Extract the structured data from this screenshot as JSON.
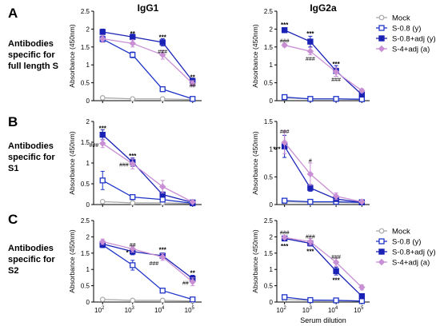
{
  "panels": [
    {
      "letter": "A",
      "label_lines": [
        "Antibodies",
        "specific for",
        "full length S"
      ]
    },
    {
      "letter": "B",
      "label_lines": [
        "Antibodies",
        "specific for",
        "S1"
      ]
    },
    {
      "letter": "C",
      "label_lines": [
        "Antibodies",
        "specific for",
        "S2"
      ]
    }
  ],
  "column_titles": [
    "IgG1",
    "IgG2a"
  ],
  "x_tick_labels": [
    "10",
    "10",
    "10",
    "10"
  ],
  "x_tick_exponents": [
    "2",
    "3",
    "4",
    "5"
  ],
  "x_axis_label": "Serum dilution",
  "y_axis_label": "Absorbance (450nm)",
  "series_styles": [
    {
      "name": "Mock",
      "color": "#a9a9a9",
      "marker": "circle-open"
    },
    {
      "name": "S-0.8 (y)",
      "color": "#1f35c9",
      "marker": "square-open"
    },
    {
      "name": "S-0.8+adj (y)",
      "color": "#1a22b5",
      "marker": "square-filled"
    },
    {
      "name": "S-4+adj (a)",
      "color": "#c98fd4",
      "marker": "diamond-filled"
    }
  ],
  "chart_data": [
    {
      "type": "line",
      "panel": "A",
      "title": "IgG1",
      "xlabel": "",
      "ylabel": "Absorbance (450nm)",
      "x": [
        100,
        1000,
        10000,
        100000
      ],
      "xscale": "log",
      "ylim": [
        0,
        2.5
      ],
      "yticks": [
        0,
        0.5,
        1.0,
        1.5,
        2.0,
        2.5
      ],
      "series": [
        {
          "name": "Mock",
          "values": [
            0.08,
            0.05,
            0.05,
            0.03
          ],
          "errors": [
            0.02,
            0.01,
            0.01,
            0.01
          ]
        },
        {
          "name": "S-0.8 (y)",
          "values": [
            1.72,
            1.28,
            0.32,
            0.05
          ],
          "errors": [
            0.08,
            0.08,
            0.05,
            0.02
          ]
        },
        {
          "name": "S-0.8+adj (y)",
          "values": [
            1.92,
            1.78,
            1.63,
            0.55
          ],
          "errors": [
            0.08,
            0.08,
            0.1,
            0.08
          ]
        },
        {
          "name": "S-4+adj (a)",
          "values": [
            1.73,
            1.6,
            1.28,
            0.48
          ],
          "errors": [
            0.1,
            0.1,
            0.12,
            0.08
          ]
        }
      ],
      "annotations": [
        {
          "text": "**",
          "x": 1000,
          "y": 1.88,
          "kind": "star"
        },
        {
          "text": "***",
          "x": 10000,
          "y": 1.77,
          "kind": "star"
        },
        {
          "text": "**",
          "x": 100000,
          "y": 0.66,
          "kind": "star"
        },
        {
          "text": "###",
          "x": 10000,
          "y": 1.38,
          "kind": "hash"
        },
        {
          "text": "##",
          "x": 100000,
          "y": 0.43,
          "kind": "hash"
        }
      ]
    },
    {
      "type": "line",
      "panel": "A",
      "title": "IgG2a",
      "xlabel": "",
      "ylabel": "Absorbance (450nm)",
      "x": [
        100,
        1000,
        10000,
        100000
      ],
      "xscale": "log",
      "ylim": [
        0,
        2.5
      ],
      "yticks": [
        0,
        0.5,
        1.0,
        1.5,
        2.0,
        2.5
      ],
      "series": [
        {
          "name": "Mock",
          "values": [
            0.08,
            0.05,
            0.05,
            0.03
          ],
          "errors": [
            0.02,
            0.01,
            0.01,
            0.01
          ]
        },
        {
          "name": "S-0.8 (y)",
          "values": [
            0.1,
            0.05,
            0.05,
            0.04
          ],
          "errors": [
            0.02,
            0.01,
            0.01,
            0.01
          ]
        },
        {
          "name": "S-0.8+adj (y)",
          "values": [
            1.97,
            1.65,
            0.83,
            0.17
          ],
          "errors": [
            0.06,
            0.15,
            0.15,
            0.05
          ]
        },
        {
          "name": "S-4+adj (a)",
          "values": [
            1.55,
            1.38,
            0.8,
            0.28
          ],
          "errors": [
            0.05,
            0.1,
            0.12,
            0.05
          ]
        }
      ],
      "annotations": [
        {
          "text": "***",
          "x": 100,
          "y": 2.12,
          "kind": "star"
        },
        {
          "text": "***",
          "x": 1000,
          "y": 1.87,
          "kind": "star"
        },
        {
          "text": "***",
          "x": 10000,
          "y": 1.03,
          "kind": "star"
        },
        {
          "text": "###",
          "x": 100,
          "y": 1.68,
          "kind": "hash"
        },
        {
          "text": "###",
          "x": 1000,
          "y": 1.18,
          "kind": "hash"
        },
        {
          "text": "###",
          "x": 10000,
          "y": 0.6,
          "kind": "hash"
        }
      ]
    },
    {
      "type": "line",
      "panel": "B",
      "title": "",
      "xlabel": "",
      "ylabel": "Absorbance (450nm)",
      "x": [
        100,
        1000,
        10000,
        100000
      ],
      "xscale": "log",
      "ylim": [
        0,
        2.0
      ],
      "yticks": [
        0,
        0.5,
        1.0,
        1.5,
        2.0
      ],
      "series": [
        {
          "name": "Mock",
          "values": [
            0.07,
            0.04,
            0.04,
            0.02
          ],
          "errors": [
            0.02,
            0.01,
            0.01,
            0.01
          ]
        },
        {
          "name": "S-0.8 (y)",
          "values": [
            0.58,
            0.18,
            0.12,
            0.03
          ],
          "errors": [
            0.22,
            0.06,
            0.04,
            0.01
          ]
        },
        {
          "name": "S-0.8+adj (y)",
          "values": [
            1.68,
            1.02,
            0.24,
            0.05
          ],
          "errors": [
            0.12,
            0.1,
            0.05,
            0.02
          ]
        },
        {
          "name": "S-4+adj (a)",
          "values": [
            1.47,
            0.98,
            0.43,
            0.06
          ],
          "errors": [
            0.1,
            0.12,
            0.15,
            0.02
          ]
        }
      ],
      "annotations": [
        {
          "text": "***",
          "x": 100,
          "y": 1.84,
          "kind": "star"
        },
        {
          "text": "***",
          "x": 1000,
          "y": 1.17,
          "kind": "star"
        },
        {
          "text": "###",
          "x": 100,
          "y": 1.44,
          "kind": "hash-left"
        },
        {
          "text": "###",
          "x": 1000,
          "y": 0.97,
          "kind": "hash-left"
        }
      ]
    },
    {
      "type": "line",
      "panel": "B",
      "title": "",
      "xlabel": "",
      "ylabel": "Absorbance (450nm)",
      "x": [
        100,
        1000,
        10000,
        100000
      ],
      "xscale": "log",
      "ylim": [
        0,
        1.5
      ],
      "yticks": [
        0,
        0.5,
        1.0,
        1.5
      ],
      "series": [
        {
          "name": "Mock",
          "values": [
            0.05,
            0.04,
            0.04,
            0.03
          ],
          "errors": [
            0.01,
            0.01,
            0.01,
            0.01
          ]
        },
        {
          "name": "S-0.8 (y)",
          "values": [
            0.07,
            0.05,
            0.05,
            0.04
          ],
          "errors": [
            0.02,
            0.01,
            0.01,
            0.01
          ]
        },
        {
          "name": "S-0.8+adj (y)",
          "values": [
            1.05,
            0.3,
            0.1,
            0.04
          ],
          "errors": [
            0.2,
            0.06,
            0.03,
            0.01
          ]
        },
        {
          "name": "S-4+adj (a)",
          "values": [
            1.12,
            0.55,
            0.15,
            0.05
          ],
          "errors": [
            0.2,
            0.2,
            0.06,
            0.02
          ]
        }
      ],
      "annotations": [
        {
          "text": "###",
          "x": 100,
          "y": 1.33,
          "kind": "hash"
        },
        {
          "text": "***",
          "x": 100,
          "y": 1.0,
          "kind": "star-left"
        },
        {
          "text": "#",
          "x": 1000,
          "y": 0.8,
          "kind": "hash"
        }
      ]
    },
    {
      "type": "line",
      "panel": "C",
      "title": "",
      "xlabel": "",
      "ylabel": "Absorbance (450nm)",
      "x": [
        100,
        1000,
        10000,
        100000
      ],
      "xscale": "log",
      "ylim": [
        0,
        2.5
      ],
      "yticks": [
        0,
        0.5,
        1.0,
        1.5,
        2.0,
        2.5
      ],
      "series": [
        {
          "name": "Mock",
          "values": [
            0.08,
            0.05,
            0.05,
            0.03
          ],
          "errors": [
            0.02,
            0.01,
            0.01,
            0.01
          ]
        },
        {
          "name": "S-0.8 (y)",
          "values": [
            1.75,
            1.13,
            0.35,
            0.08
          ],
          "errors": [
            0.08,
            0.15,
            0.05,
            0.02
          ]
        },
        {
          "name": "S-0.8+adj (y)",
          "values": [
            1.78,
            1.55,
            1.42,
            0.72
          ],
          "errors": [
            0.1,
            0.1,
            0.08,
            0.1
          ]
        },
        {
          "name": "S-4+adj (a)",
          "values": [
            1.85,
            1.63,
            1.38,
            0.62
          ],
          "errors": [
            0.08,
            0.1,
            0.1,
            0.12
          ]
        }
      ],
      "annotations": [
        {
          "text": "##",
          "x": 1000,
          "y": 1.77,
          "kind": "hash"
        },
        {
          "text": "*",
          "x": 1000,
          "y": 1.52,
          "kind": "star-left"
        },
        {
          "text": "***",
          "x": 10000,
          "y": 1.6,
          "kind": "star"
        },
        {
          "text": "###",
          "x": 10000,
          "y": 1.2,
          "kind": "hash-left"
        },
        {
          "text": "**",
          "x": 100000,
          "y": 0.9,
          "kind": "star"
        },
        {
          "text": "##",
          "x": 100000,
          "y": 0.6,
          "kind": "hash-left"
        }
      ]
    },
    {
      "type": "line",
      "panel": "C",
      "title": "",
      "xlabel": "Serum dilution",
      "ylabel": "Absorbance (450nm)",
      "x": [
        100,
        1000,
        10000,
        100000
      ],
      "xscale": "log",
      "ylim": [
        0,
        2.5
      ],
      "yticks": [
        0,
        0.5,
        1.0,
        1.5,
        2.0,
        2.5
      ],
      "series": [
        {
          "name": "Mock",
          "values": [
            0.08,
            0.05,
            0.05,
            0.03
          ],
          "errors": [
            0.02,
            0.01,
            0.01,
            0.01
          ]
        },
        {
          "name": "S-0.8 (y)",
          "values": [
            0.15,
            0.06,
            0.05,
            0.03
          ],
          "errors": [
            0.05,
            0.01,
            0.01,
            0.01
          ]
        },
        {
          "name": "S-0.8+adj (y)",
          "values": [
            1.95,
            1.8,
            0.95,
            0.18
          ],
          "errors": [
            0.05,
            0.08,
            0.12,
            0.05
          ]
        },
        {
          "name": "S-4+adj (a)",
          "values": [
            1.98,
            1.85,
            1.22,
            0.45
          ],
          "errors": [
            0.05,
            0.1,
            0.12,
            0.08
          ]
        }
      ],
      "annotations": [
        {
          "text": "###",
          "x": 100,
          "y": 2.15,
          "kind": "hash"
        },
        {
          "text": "***",
          "x": 100,
          "y": 1.72,
          "kind": "star"
        },
        {
          "text": "###",
          "x": 1000,
          "y": 2.02,
          "kind": "hash"
        },
        {
          "text": "***",
          "x": 1000,
          "y": 1.56,
          "kind": "star"
        },
        {
          "text": "###",
          "x": 10000,
          "y": 1.4,
          "kind": "hash"
        },
        {
          "text": "***",
          "x": 10000,
          "y": 0.68,
          "kind": "star"
        }
      ]
    }
  ]
}
